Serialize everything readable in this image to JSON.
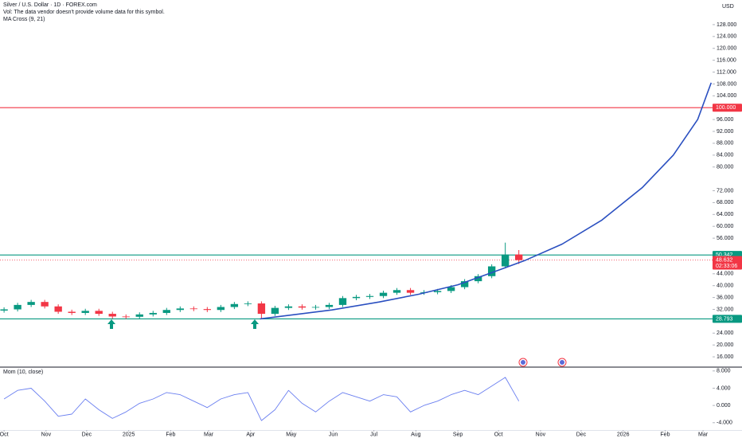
{
  "chart_data": [
    {
      "type": "candlestick",
      "title": "Silver / U.S. Dollar · 1D · FOREX.com",
      "subtitle": "Vol: The data vendor doesn't provide volume data for this symbol.",
      "indicator": "MA Cross (9, 21)",
      "y_unit": "USD",
      "up_color": "#089981",
      "down_color": "#f23645",
      "x": [
        0,
        10,
        20,
        30,
        40,
        50,
        60,
        70,
        80,
        90,
        100,
        110,
        120,
        130,
        140,
        150,
        160,
        170,
        180,
        190,
        200,
        210,
        220,
        230,
        240,
        250,
        260,
        270,
        280,
        290,
        300,
        310,
        320,
        330,
        340,
        350,
        360,
        370,
        380
      ],
      "open": [
        31.6,
        32.0,
        33.5,
        34.5,
        33.0,
        31.2,
        30.8,
        31.5,
        30.5,
        29.6,
        29.5,
        30.3,
        30.8,
        31.8,
        32.3,
        32.1,
        31.8,
        32.8,
        33.8,
        34.0,
        30.5,
        32.5,
        33.0,
        32.6,
        32.8,
        33.5,
        35.8,
        36.2,
        36.5,
        37.6,
        38.5,
        37.6,
        37.8,
        38.2,
        39.5,
        41.5,
        43.2,
        46.5,
        50.5
      ],
      "high": [
        32.7,
        34.2,
        35.2,
        35.2,
        33.7,
        31.9,
        32.2,
        32.2,
        31.2,
        30.3,
        31.0,
        31.5,
        32.5,
        33.0,
        33.0,
        32.8,
        33.5,
        34.5,
        34.7,
        34.7,
        33.2,
        33.7,
        33.7,
        33.5,
        34.2,
        36.5,
        36.9,
        37.2,
        38.3,
        39.2,
        39.2,
        38.5,
        38.9,
        40.2,
        42.2,
        43.9,
        47.2,
        54.5,
        52.0
      ],
      "low": [
        30.9,
        31.3,
        32.8,
        32.3,
        30.5,
        30.1,
        30.1,
        29.8,
        28.9,
        28.8,
        28.8,
        29.6,
        30.1,
        31.1,
        31.4,
        31.1,
        31.1,
        32.1,
        33.1,
        28.8,
        29.8,
        31.8,
        31.9,
        31.9,
        32.1,
        32.8,
        35.1,
        35.5,
        35.8,
        36.9,
        36.9,
        36.9,
        37.1,
        37.5,
        38.8,
        40.8,
        42.5,
        45.8,
        47.3
      ],
      "close": [
        32.0,
        33.5,
        34.5,
        33.0,
        31.2,
        30.8,
        31.5,
        30.5,
        29.6,
        29.5,
        30.3,
        30.8,
        31.8,
        32.3,
        32.1,
        31.8,
        32.8,
        33.8,
        34.0,
        30.5,
        32.5,
        33.0,
        32.6,
        32.8,
        33.5,
        35.8,
        36.2,
        36.5,
        37.6,
        38.5,
        37.6,
        37.8,
        38.2,
        39.5,
        41.5,
        43.2,
        46.5,
        50.5,
        48.6
      ],
      "curve": {
        "color": "#2a4fc0",
        "x": [
          189,
          242,
          277,
          306,
          335,
          365,
          385,
          412,
          441,
          471,
          494,
          512,
          522
        ],
        "values": [
          28.8,
          31.8,
          34.5,
          37.1,
          40.3,
          45.2,
          48.6,
          54.0,
          62.0,
          73.0,
          84.0,
          96.0,
          108.4
        ]
      },
      "hlines": [
        {
          "value": 100,
          "label": "100.000",
          "color": "#f23645",
          "style": "solid"
        },
        {
          "value": 50.342,
          "label": "50.342",
          "color": "#089981",
          "style": "solid"
        },
        {
          "value": 48.632,
          "label": "48.632",
          "color": "#f23645",
          "style": "dotted",
          "countdown": "02:33:06"
        },
        {
          "value": 28.793,
          "label": "28.793",
          "color": "#089981",
          "style": "solid"
        }
      ],
      "xlim": [
        -3,
        523
      ],
      "ylim": [
        12.8,
        136.3
      ],
      "yticks": [
        {
          "value": 16,
          "label": "16.000"
        },
        {
          "value": 20,
          "label": "20.000"
        },
        {
          "value": 24,
          "label": "24.000"
        },
        {
          "value": 32,
          "label": "32.000"
        },
        {
          "value": 36,
          "label": "36.000"
        },
        {
          "value": 40,
          "label": "40.000"
        },
        {
          "value": 44,
          "label": "44.000"
        },
        {
          "value": 56,
          "label": "56.000"
        },
        {
          "value": 60,
          "label": "60.000"
        },
        {
          "value": 64,
          "label": "64.000"
        },
        {
          "value": 68,
          "label": "68.000"
        },
        {
          "value": 72,
          "label": "72.000"
        },
        {
          "value": 80,
          "label": "80.000"
        },
        {
          "value": 84,
          "label": "84.000"
        },
        {
          "value": 88,
          "label": "88.000"
        },
        {
          "value": 92,
          "label": "92.000"
        },
        {
          "value": 96,
          "label": "96.000"
        },
        {
          "value": 104,
          "label": "104.000"
        },
        {
          "value": 108,
          "label": "108.000"
        },
        {
          "value": 112,
          "label": "112.000"
        },
        {
          "value": 116,
          "label": "116.000"
        },
        {
          "value": 120,
          "label": "120.000"
        },
        {
          "value": 124,
          "label": "124.000"
        },
        {
          "value": 128,
          "label": "128.000"
        }
      ],
      "grid": false
    },
    {
      "type": "line",
      "title": "Mom (10, close)",
      "color": "#6a7ff0",
      "x": [
        0,
        10,
        20,
        30,
        40,
        50,
        60,
        70,
        80,
        90,
        100,
        110,
        120,
        130,
        140,
        150,
        160,
        170,
        180,
        190,
        200,
        210,
        220,
        230,
        240,
        250,
        260,
        270,
        280,
        290,
        300,
        310,
        320,
        330,
        340,
        350,
        360,
        370,
        380
      ],
      "values": [
        1.5,
        3.5,
        4.0,
        1.0,
        -2.5,
        -2.0,
        1.5,
        -1.0,
        -3.0,
        -1.5,
        0.5,
        1.5,
        3.0,
        2.5,
        1.0,
        -0.5,
        1.5,
        2.5,
        3.0,
        -3.5,
        -1.0,
        3.5,
        0.5,
        -1.5,
        1.0,
        3.0,
        2.0,
        1.0,
        2.5,
        2.0,
        -1.5,
        0.0,
        1.0,
        2.5,
        3.5,
        2.5,
        4.5,
        6.5,
        1.0
      ],
      "xlim": [
        -3,
        523
      ],
      "ylim": [
        -5.7,
        8.7
      ],
      "yticks": [
        {
          "value": 8,
          "label": "8.000"
        },
        {
          "value": 4,
          "label": "4.000"
        },
        {
          "value": 0,
          "label": "0.000"
        },
        {
          "value": -4,
          "label": "-4.000"
        }
      ],
      "xticks": [
        {
          "value": 0,
          "label": "Oct"
        },
        {
          "value": 31,
          "label": "Nov"
        },
        {
          "value": 61,
          "label": "Dec"
        },
        {
          "value": 92,
          "label": "2025"
        },
        {
          "value": 123,
          "label": "Feb"
        },
        {
          "value": 151,
          "label": "Mar"
        },
        {
          "value": 182,
          "label": "Apr"
        },
        {
          "value": 212,
          "label": "May"
        },
        {
          "value": 243,
          "label": "Jun"
        },
        {
          "value": 273,
          "label": "Jul"
        },
        {
          "value": 304,
          "label": "Aug"
        },
        {
          "value": 335,
          "label": "Sep"
        },
        {
          "value": 365,
          "label": "Oct"
        },
        {
          "value": 396,
          "label": "Nov"
        },
        {
          "value": 426,
          "label": "Dec"
        },
        {
          "value": 457,
          "label": "2026"
        },
        {
          "value": 488,
          "label": "Feb"
        },
        {
          "value": 516,
          "label": "Mar"
        }
      ],
      "grid": false
    }
  ]
}
